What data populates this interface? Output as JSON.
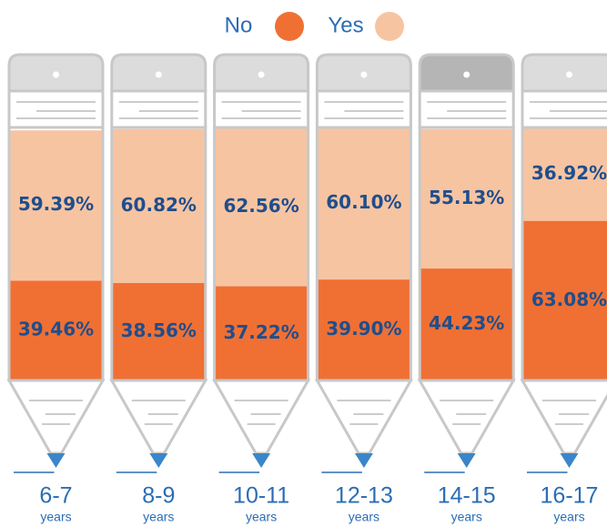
{
  "chart_data": {
    "type": "stacked-bar",
    "categories": [
      "6-7",
      "8-9",
      "10-11",
      "12-13",
      "14-15",
      "16-17"
    ],
    "x_unit": "years",
    "series": [
      {
        "name": "No",
        "color": "#f07034",
        "values": [
          39.46,
          38.56,
          37.22,
          39.9,
          44.23,
          63.08
        ],
        "value_labels": [
          "39.46%",
          "38.56%",
          "37.22%",
          "39.90%",
          "44.23%",
          "63.08%"
        ]
      },
      {
        "name": "Yes",
        "color": "#f7c4a2",
        "values": [
          59.39,
          60.82,
          62.56,
          60.1,
          55.13,
          36.92
        ],
        "value_labels": [
          "59.39%",
          "60.82%",
          "62.56%",
          "60.10%",
          "55.13%",
          "36.92%"
        ]
      }
    ]
  }
}
